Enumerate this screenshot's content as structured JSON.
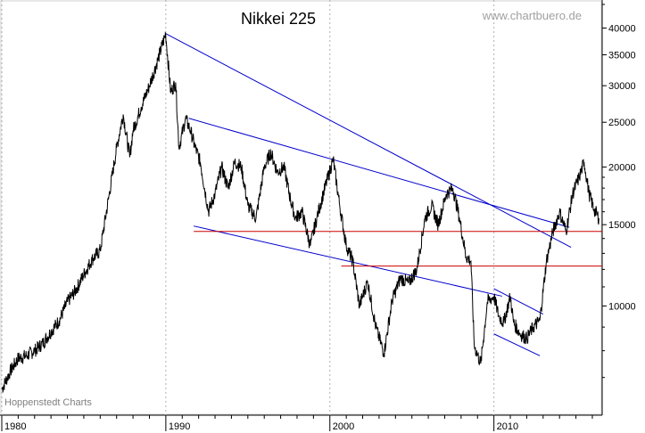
{
  "chart_data": {
    "type": "line",
    "title": "Nikkei 225",
    "watermark": "www.chartbuero.de",
    "source": "Hoppenstedt Charts",
    "xlabel": "",
    "ylabel": "",
    "y_scale": "log",
    "xlim": [
      1980,
      2016.6
    ],
    "ylim": [
      5800,
      46000
    ],
    "x_tick_labels": [
      "1980",
      "1990",
      "2000",
      "2010"
    ],
    "x_tick_values": [
      1980,
      1990,
      2000,
      2010
    ],
    "y_tick_labels": [
      "40000",
      "35000",
      "30000",
      "25000",
      "20000",
      "15000",
      "10000"
    ],
    "y_tick_values": [
      40000,
      35000,
      30000,
      25000,
      20000,
      15000,
      10000
    ],
    "grid": "vertical dotted at decades",
    "colors": {
      "price": "#000000",
      "trend": "#0000cc",
      "support": "#cc0000",
      "grid": "#b0b0b0"
    },
    "series": [
      {
        "x": [
          1980.0,
          1980.5,
          1981.0,
          1981.5,
          1982.0,
          1982.5,
          1983.0,
          1983.5,
          1984.0,
          1984.5,
          1985.0,
          1985.5,
          1986.0,
          1986.5,
          1987.0,
          1987.4,
          1987.8,
          1988.0,
          1988.5,
          1989.0,
          1989.5,
          1989.99,
          1990.3,
          1990.6,
          1990.8,
          1991.2,
          1991.5,
          1991.8,
          1992.1,
          1992.6,
          1993.0,
          1993.4,
          1993.8,
          1994.2,
          1994.6,
          1995.0,
          1995.5,
          1996.0,
          1996.4,
          1996.8,
          1997.2,
          1997.6,
          1997.9,
          1998.3,
          1998.8,
          1999.2,
          1999.6,
          2000.2,
          2000.6,
          2001.0,
          2001.4,
          2001.8,
          2002.3,
          2002.8,
          2003.3,
          2003.8,
          2004.3,
          2004.8,
          2005.3,
          2005.8,
          2006.2,
          2006.6,
          2007.1,
          2007.5,
          2007.9,
          2008.3,
          2008.6,
          2008.8,
          2009.2,
          2009.6,
          2010.0,
          2010.3,
          2010.6,
          2011.0,
          2011.2,
          2011.6,
          2012.0,
          2012.4,
          2012.8,
          2013.2,
          2013.6,
          2014.0,
          2014.4,
          2014.8,
          2015.2,
          2015.5,
          2015.8,
          2016.1,
          2016.4
        ],
        "values": [
          6600,
          7200,
          7700,
          7800,
          8000,
          8300,
          8800,
          9300,
          10200,
          10800,
          11700,
          12600,
          13200,
          17000,
          22000,
          26000,
          21000,
          24000,
          27000,
          30000,
          34000,
          38900,
          29000,
          30500,
          22000,
          25500,
          24000,
          22000,
          20500,
          16000,
          17500,
          20000,
          18000,
          20500,
          20000,
          16500,
          15500,
          20000,
          21500,
          19500,
          20000,
          17000,
          15500,
          16000,
          13500,
          15500,
          17500,
          20800,
          16500,
          13500,
          12500,
          10000,
          11300,
          9000,
          7900,
          10300,
          11500,
          11200,
          12000,
          15500,
          16500,
          15000,
          17500,
          18000,
          15500,
          12800,
          12500,
          8200,
          7500,
          10200,
          10500,
          9500,
          9200,
          10500,
          9200,
          8700,
          8500,
          9000,
          9300,
          12500,
          14500,
          16000,
          14500,
          17500,
          19000,
          20500,
          17500,
          16200,
          15500
        ]
      }
    ],
    "trend_lines": [
      {
        "color": "blue",
        "from": [
          1989.99,
          38900
        ],
        "to": [
          2014.7,
          13400
        ]
      },
      {
        "color": "blue",
        "from": [
          1991.4,
          25500
        ],
        "to": [
          2014.6,
          14800
        ]
      },
      {
        "color": "blue",
        "from": [
          1991.7,
          14900
        ],
        "to": [
          2010.5,
          10500
        ]
      },
      {
        "color": "blue",
        "from": [
          2010.0,
          10900
        ],
        "to": [
          2013.0,
          9600
        ]
      },
      {
        "color": "blue",
        "from": [
          2010.0,
          8700
        ],
        "to": [
          2012.8,
          7800
        ]
      },
      {
        "color": "red",
        "from": [
          1991.7,
          14500
        ],
        "to": [
          2016.6,
          14500
        ]
      },
      {
        "color": "red",
        "from": [
          2000.7,
          12200
        ],
        "to": [
          2016.6,
          12200
        ]
      }
    ]
  }
}
